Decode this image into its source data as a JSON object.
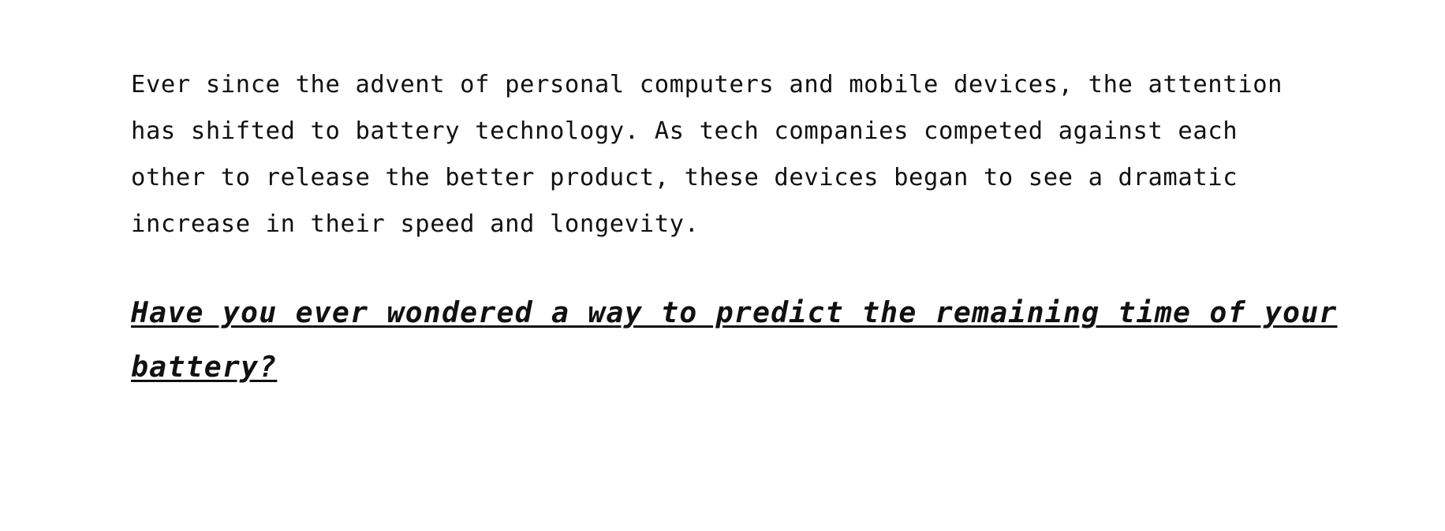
{
  "document": {
    "intro_lines": [
      "Ever since the advent of personal computers and mobile devices, the attention",
      "has shifted to battery technology. As tech companies competed against each",
      "other to release the better product, these devices began to see a dramatic",
      "increase in their speed and longevity."
    ],
    "heading_lines": [
      "Have you ever wondered a way to predict the remaining time of your",
      "battery?"
    ]
  }
}
